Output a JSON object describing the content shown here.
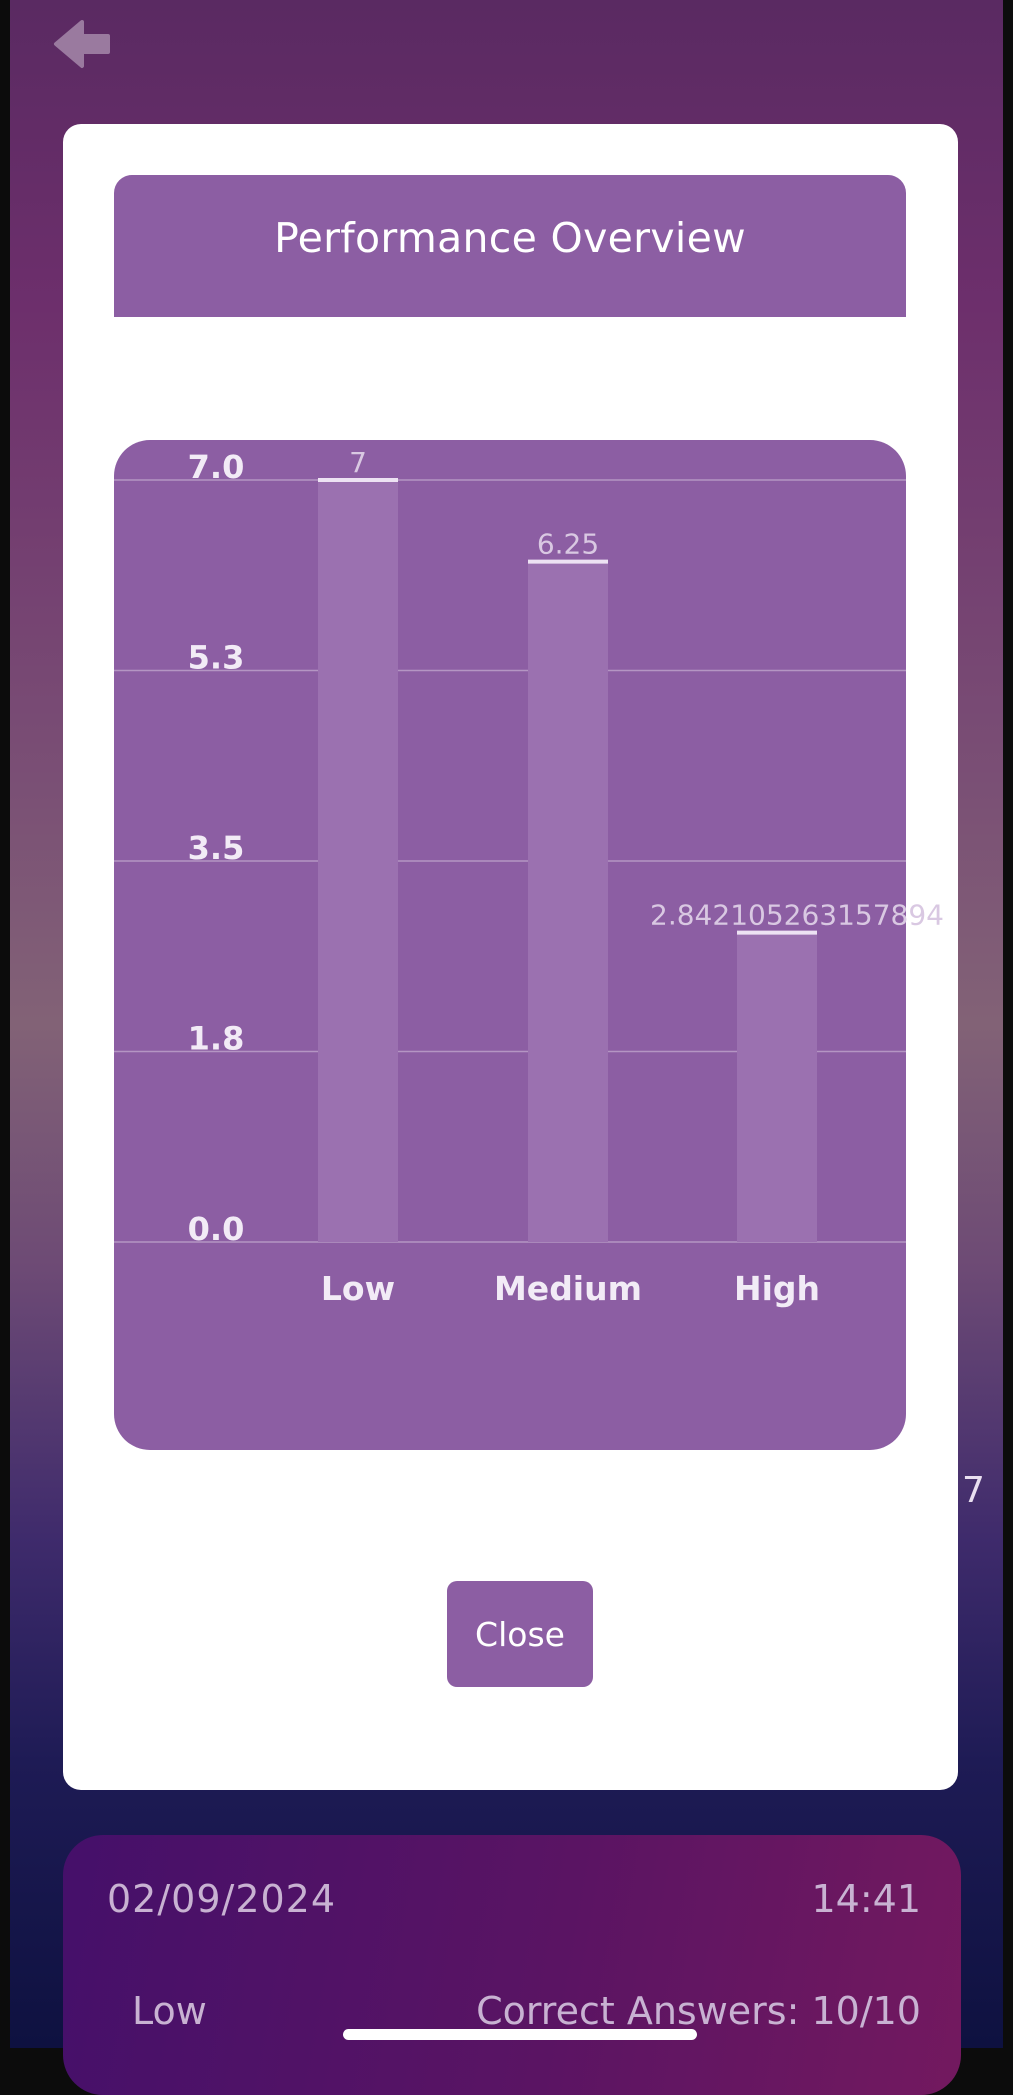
{
  "modal": {
    "title": "Performance Overview",
    "close_label": "Close"
  },
  "chart_data": {
    "type": "bar",
    "categories": [
      "Low",
      "Medium",
      "High"
    ],
    "values": [
      7,
      6.25,
      2.842105263157894
    ],
    "data_labels": [
      "7",
      "6.25",
      "2.842105263157894"
    ],
    "y_ticks": [
      "7.0",
      "5.3",
      "3.5",
      "1.8",
      "0.0"
    ],
    "y_tick_values": [
      7.0,
      5.25,
      3.5,
      1.75,
      0.0
    ],
    "ylim": [
      0,
      7
    ],
    "grid": true,
    "colors": {
      "background": "#8c5ea3",
      "bar": "#9b71b0",
      "grid": "#b495c3",
      "label": "#f2ebf6"
    }
  },
  "peek": {
    "value": "7"
  },
  "result": {
    "date": "02/09/2024",
    "time": "14:41",
    "level": "Low",
    "answers": "Correct Answers: 10/10"
  },
  "icons": {
    "back": "arrow-left-icon"
  }
}
